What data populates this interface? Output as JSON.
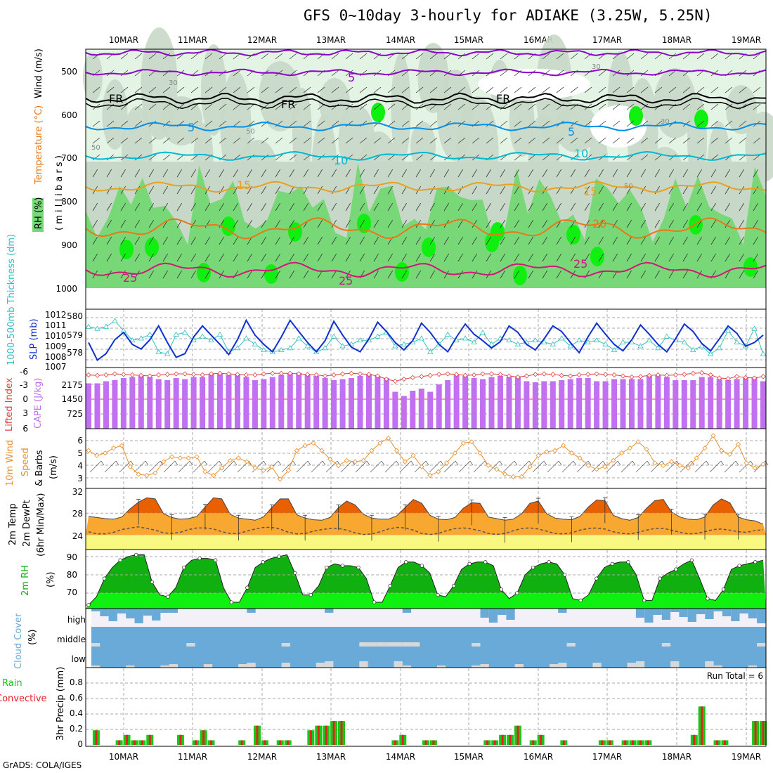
{
  "title": "GFS 0~10day 3-hourly for ADIAKE (3.25W, 5.25N)",
  "footer": "GrADS: COLA/IGES",
  "colors": {
    "rh_light": "#e4f4e4",
    "rh_mid": "#c8d8c8",
    "rh_green": "#78d878",
    "rh_bright": "#10f010",
    "wind_purple": "#8c00c8",
    "freeze_black": "#000000",
    "t5_blue": "#0090e8",
    "t10_cyan": "#00b8d0",
    "t15_orange": "#e8a020",
    "t20_orange": "#e87818",
    "t25_magenta": "#d01878",
    "slp": "#1030d0",
    "thickness": "#30c0c0",
    "lifted": "#e04040",
    "cape": "#c070f0",
    "wind10m": "#e89030",
    "temp_fill": "#f8a830",
    "temp_top": "#e86000",
    "dew_fill": "#f8f880",
    "rh2m_dark": "#10b010",
    "rh2m_light": "#10f010",
    "cloud_blue": "#6aaad8",
    "cloud_gray": "#d8d8d8",
    "cloud_white": "#f4f0f8",
    "precip_green": "#18c818",
    "precip_red": "#e82020"
  },
  "chart_data": [
    {
      "type": "area",
      "panel": "upper-air",
      "x_dates": [
        "10MAR",
        "11MAR",
        "12MAR",
        "13MAR",
        "14MAR",
        "15MAR",
        "16MAR",
        "17MAR",
        "18MAR",
        "19MAR"
      ],
      "ylabel_parts": [
        "RH (%)",
        "Temperature (°C)",
        "Wind (m/s)"
      ],
      "ylabel_unit": "( m i l l i b a r s )",
      "y_ticks": [
        "500",
        "600",
        "700",
        "800",
        "900",
        "1000"
      ],
      "ylim": [
        450,
        1000
      ],
      "contour_labels": [
        {
          "text": "5",
          "kind": "temp-5-upper"
        },
        {
          "text": "FR",
          "kind": "freezing"
        },
        {
          "text": "5",
          "kind": "temp-5"
        },
        {
          "text": "10",
          "kind": "temp-10"
        },
        {
          "text": "15",
          "kind": "temp-15"
        },
        {
          "text": "20",
          "kind": "temp-20"
        },
        {
          "text": "25",
          "kind": "temp-25"
        },
        {
          "text": "30",
          "kind": "wind"
        },
        {
          "text": "50",
          "kind": "wind"
        }
      ]
    },
    {
      "type": "line",
      "panel": "slp-thickness",
      "ylabel_left": "1000-500mb Thickness (dm)",
      "ylabel_right": "SLP (mb)",
      "left_ticks": [
        "580",
        "579",
        "578"
      ],
      "right_ticks": [
        "1012",
        "1011",
        "1010",
        "1009",
        "1008",
        "1007"
      ],
      "series": [
        {
          "name": "SLP (mb)",
          "values": [
            1009.2,
            1007.3,
            1008.0,
            1009.5,
            1010.3,
            1009.0,
            1008.5,
            1009.5,
            1011.0,
            1009.2,
            1007.6,
            1008.0,
            1009.8,
            1011.0,
            1010.0,
            1009.0,
            1007.9,
            1009.5,
            1011.6,
            1010.0,
            1009.0,
            1008.2,
            1009.8,
            1011.6,
            1010.4,
            1009.2,
            1008.2,
            1009.4,
            1011.5,
            1010.0,
            1008.7,
            1008.2,
            1009.6,
            1011.4,
            1010.4,
            1009.2,
            1008.4,
            1009.4,
            1011.3,
            1010.3,
            1009.0,
            1008.2,
            1009.8,
            1011.2,
            1010.1,
            1009.4,
            1008.6,
            1009.3,
            1011.0,
            1010.3,
            1009.0,
            1008.4,
            1009.6,
            1011.0,
            1010.4,
            1009.2,
            1008.1,
            1009.8,
            1011.3,
            1010.1,
            1009.0,
            1008.3,
            1009.5,
            1011.1,
            1010.1,
            1009.0,
            1008.2,
            1009.6,
            1011.2,
            1010.4,
            1009.1,
            1008.3,
            1009.6,
            1011.0,
            1010.2,
            1008.8,
            1009.2,
            1010.0
          ]
        },
        {
          "name": "Thickness (dm)",
          "values": [
            579.6,
            579.5,
            579.6,
            579.9,
            579.4,
            578.9,
            579.0,
            579.2,
            578.3,
            578.2,
            579.2,
            579.3,
            578.9,
            579.1,
            578.9,
            579.2,
            578.3,
            578.5,
            579.0,
            578.7,
            578.4,
            578.3,
            578.4,
            578.5,
            579.0,
            578.6,
            578.3,
            578.5,
            579.1,
            578.6,
            578.7,
            578.9,
            578.9,
            579.1,
            579.3,
            578.6,
            578.7,
            578.8,
            579.0,
            578.3,
            578.7,
            579.2,
            578.9,
            579.0,
            578.8,
            579.3,
            578.7,
            579.0,
            578.9,
            578.7,
            578.8,
            578.9,
            578.8,
            578.7,
            579.0,
            578.6,
            578.9,
            578.8,
            578.9,
            578.7,
            578.4,
            578.8,
            578.8,
            578.6,
            578.9,
            578.5,
            579.1,
            578.9,
            578.8,
            578.4,
            578.6,
            578.2,
            578.5,
            579.4,
            578.8,
            578.6,
            579.5,
            578.2
          ]
        }
      ]
    },
    {
      "type": "bar",
      "panel": "cape-lifted",
      "ylabel_left": "Lifted Index",
      "ylabel_right": "CAPE (J/kg)",
      "left_ticks": [
        "-6",
        "-3",
        "0",
        "3",
        "6"
      ],
      "right_ticks": [
        "2175",
        "1450",
        "725"
      ],
      "series": [
        {
          "name": "CAPE (J/kg)",
          "values": [
            2150,
            2150,
            2250,
            2300,
            2400,
            2450,
            2500,
            2450,
            2350,
            2300,
            2400,
            2350,
            2450,
            2450,
            2600,
            2600,
            2550,
            2600,
            2450,
            2300,
            2350,
            2450,
            2550,
            2650,
            2650,
            2550,
            2500,
            2400,
            2300,
            2350,
            2400,
            2500,
            2600,
            2500,
            2400,
            1750,
            1550,
            1800,
            1900,
            1750,
            2100,
            2300,
            2550,
            2500,
            2400,
            2350,
            2450,
            2500,
            2450,
            2450,
            2250,
            2200,
            2250,
            2250,
            2300,
            2350,
            2400,
            2400,
            2250,
            2250,
            2350,
            2350,
            2350,
            2350,
            2500,
            2550,
            2450,
            2300,
            2300,
            2300,
            2450,
            2450,
            2350,
            2300,
            2350,
            2400,
            2450,
            2250
          ]
        },
        {
          "name": "Lifted Index",
          "values": [
            -5.6,
            -5.5,
            -5.6,
            -5.8,
            -5.7,
            -5.6,
            -5.5,
            -5.4,
            -5.6,
            -5.7,
            -5.8,
            -5.8,
            -5.7,
            -5.6,
            -5.8,
            -5.9,
            -5.8,
            -5.7,
            -5.6,
            -5.6,
            -5.8,
            -5.9,
            -5.9,
            -5.9,
            -5.8,
            -5.7,
            -5.6,
            -5.4,
            -5.6,
            -5.8,
            -5.9,
            -5.8,
            -5.7,
            -5.4,
            -4.8,
            -4.4,
            -4.8,
            -5.1,
            -5.3,
            -5.5,
            -5.7,
            -5.8,
            -5.7,
            -5.5,
            -5.6,
            -5.8,
            -5.8,
            -5.7,
            -5.4,
            -5.2,
            -5.4,
            -5.7,
            -5.8,
            -5.7,
            -5.5,
            -5.4,
            -5.6,
            -5.7,
            -5.8,
            -5.7,
            -5.6,
            -5.4,
            -5.2,
            -5.3,
            -5.5,
            -5.6,
            -5.5,
            -5.6,
            -5.7,
            -5.9,
            -6.0,
            -5.6,
            -5.0,
            -4.9,
            -5.3,
            -5.1,
            -5.0,
            -5.3
          ]
        }
      ]
    },
    {
      "type": "line",
      "panel": "wind-10m",
      "ylabel_parts": [
        "10m Wind",
        "Speed",
        "& Barbs"
      ],
      "ylabel_unit": "(m/s)",
      "y_ticks": [
        "6",
        "5",
        "4",
        "3"
      ],
      "ylim": [
        2.6,
        6.6
      ],
      "series": [
        {
          "name": "10m Wind Speed",
          "values": [
            5.2,
            4.8,
            5.0,
            5.4,
            5.6,
            3.9,
            3.3,
            3.2,
            3.4,
            4.3,
            4.7,
            4.6,
            4.6,
            4.7,
            3.5,
            3.2,
            3.8,
            4.4,
            4.6,
            4.3,
            3.8,
            3.6,
            3.9,
            2.9,
            3.6,
            5.2,
            5.6,
            5.8,
            5.2,
            4.5,
            4.0,
            4.4,
            4.3,
            4.4,
            5.2,
            5.8,
            6.2,
            5.2,
            4.3,
            4.8,
            3.9,
            3.2,
            3.5,
            4.2,
            5.0,
            5.8,
            5.9,
            5.0,
            4.0,
            3.7,
            3.3,
            3.1,
            3.1,
            3.9,
            4.8,
            5.1,
            5.2,
            5.6,
            5.0,
            4.6,
            4.0,
            3.7,
            3.9,
            4.4,
            5.0,
            5.4,
            5.9,
            5.3,
            4.2,
            4.0,
            4.3,
            4.0,
            3.8,
            4.6,
            5.4,
            6.4,
            5.2,
            4.9,
            5.7,
            4.2,
            3.8,
            4.1
          ]
        }
      ]
    },
    {
      "type": "area",
      "panel": "temp-2m",
      "ylabel_parts": [
        "2m Temp",
        "2m DewPt",
        "(6hr Min/Max)"
      ],
      "y_ticks": [
        "32",
        "28",
        "24"
      ],
      "ylim": [
        22,
        32
      ],
      "series": [
        {
          "name": "2m Temp",
          "values": [
            27.4,
            27.2,
            27.0,
            26.9,
            27.3,
            28.8,
            30.0,
            30.8,
            30.6,
            27.9,
            27.2,
            26.9,
            27.0,
            27.4,
            29.1,
            30.8,
            30.6,
            27.8,
            27.1,
            26.9,
            26.7,
            27.3,
            29.0,
            30.6,
            30.6,
            27.7,
            27.1,
            26.8,
            26.7,
            27.2,
            29.0,
            30.2,
            29.5,
            27.8,
            27.1,
            26.9,
            26.9,
            27.5,
            29.0,
            30.5,
            29.8,
            27.6,
            26.9,
            26.8,
            27.2,
            28.9,
            29.9,
            29.8,
            27.3,
            27.0,
            26.7,
            26.9,
            27.9,
            29.8,
            30.2,
            27.9,
            27.1,
            26.9,
            26.8,
            27.4,
            29.1,
            30.4,
            30.3,
            27.6,
            27.0,
            26.7,
            27.2,
            28.9,
            30.3,
            30.5,
            28.2,
            27.3,
            26.9,
            26.8,
            27.3,
            29.5,
            30.6,
            29.9,
            27.3,
            26.8,
            26.6,
            26.0
          ]
        },
        {
          "name": "2m DewPt",
          "values": [
            24.6,
            24.2,
            24.2,
            24.5,
            25.0,
            25.3,
            25.5,
            25.2,
            24.9,
            24.4,
            24.3,
            24.5,
            25.0,
            25.3,
            25.3,
            25.1,
            24.6,
            24.3,
            24.3,
            24.7,
            25.1,
            25.4,
            25.4,
            25.1,
            24.5,
            24.2,
            24.3,
            24.7,
            25.0,
            25.2,
            25.2,
            24.9,
            24.4,
            24.1,
            24.2,
            24.6,
            25.1,
            25.4,
            25.3,
            24.9,
            24.3,
            24.1,
            24.3,
            24.8,
            25.2,
            25.3,
            25.1,
            24.8,
            24.3,
            24.1,
            24.3,
            24.8,
            25.2,
            25.3,
            25.1,
            24.7,
            24.3,
            24.2,
            24.4,
            24.9,
            25.2,
            25.3,
            25.1,
            24.6,
            24.3,
            24.2,
            24.5,
            24.9,
            25.2,
            25.2,
            24.9,
            24.5,
            24.2,
            24.3,
            24.6,
            25.0,
            25.1,
            24.9,
            24.6,
            24.5,
            24.8,
            25.0
          ]
        }
      ]
    },
    {
      "type": "area",
      "panel": "rh-2m",
      "ylabel_parts": [
        "2m RH"
      ],
      "ylabel_unit": "(%)",
      "y_ticks": [
        "90",
        "80",
        "70"
      ],
      "ylim": [
        62,
        93
      ],
      "series": [
        {
          "name": "2m RH",
          "values": [
            63.5,
            68,
            78,
            84,
            88,
            90,
            91,
            91,
            76,
            69,
            68,
            73,
            84,
            88,
            89,
            89,
            88,
            73,
            65,
            65,
            73,
            84,
            87,
            89,
            90,
            91,
            81,
            69,
            69,
            74,
            84,
            86,
            85,
            85,
            84,
            78,
            65,
            65,
            74,
            84,
            87,
            87,
            85,
            81,
            69,
            68,
            74,
            83,
            86,
            87,
            87,
            85,
            72,
            67,
            70,
            80,
            84,
            86,
            87,
            86,
            80,
            67,
            66,
            69,
            78,
            84,
            86,
            87,
            87,
            80,
            66,
            66,
            78,
            81,
            83,
            86,
            88,
            78,
            67,
            66,
            72,
            83,
            85,
            86,
            87,
            88
          ]
        }
      ]
    },
    {
      "type": "heatmap",
      "panel": "cloud-cover",
      "ylabel_parts": [
        "Cloud Cover",
        "(%)"
      ],
      "rows": [
        "high",
        "middle",
        "low"
      ]
    },
    {
      "type": "bar",
      "panel": "precip",
      "ylabel_left_parts": [
        "Total / Rain",
        "Convective"
      ],
      "ylabel_unit": "3hr Precip (mm)",
      "y_ticks": [
        "0.8",
        "0.6",
        "0.4",
        "0.2",
        "0"
      ],
      "ylim": [
        0,
        0.96
      ],
      "annotation": "Run Total = 6",
      "series": [
        {
          "name": "Total / Rain",
          "values": [
            0,
            0.19,
            0,
            0,
            0.06,
            0.13,
            0.06,
            0.06,
            0.13,
            0,
            0,
            0,
            0.13,
            0,
            0.06,
            0.19,
            0.06,
            0,
            0,
            0,
            0.06,
            0,
            0.25,
            0.06,
            0,
            0.06,
            0.06,
            0,
            0,
            0.19,
            0.25,
            0.25,
            0.31,
            0.31,
            0,
            0,
            0,
            0,
            0,
            0,
            0.06,
            0.13,
            0,
            0,
            0.06,
            0.06,
            0,
            0,
            0,
            0,
            0,
            0,
            0.06,
            0.06,
            0.13,
            0.13,
            0.25,
            0,
            0.06,
            0.13,
            0,
            0,
            0.06,
            0,
            0,
            0,
            0,
            0.06,
            0.06,
            0,
            0.06,
            0.06,
            0.06,
            0.06,
            0,
            0,
            0,
            0,
            0,
            0.13,
            0.5,
            0,
            0.06,
            0.06,
            0,
            0,
            0,
            0.31,
            0.31
          ]
        }
      ]
    }
  ]
}
